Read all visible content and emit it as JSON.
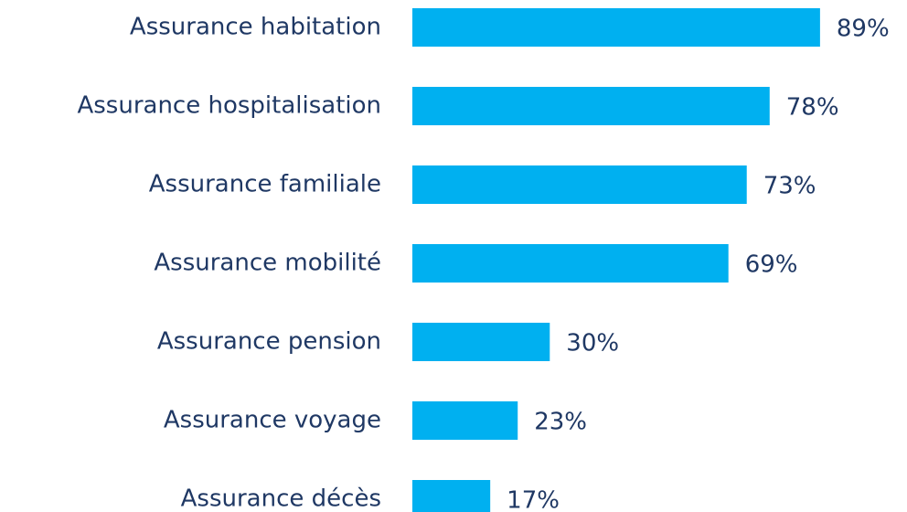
{
  "chart_data": {
    "type": "bar",
    "orientation": "horizontal",
    "categories": [
      "Assurance habitation",
      "Assurance hospitalisation",
      "Assurance familiale",
      "Assurance mobilité",
      "Assurance pension",
      "Assurance voyage",
      "Assurance décès"
    ],
    "values": [
      89,
      78,
      73,
      69,
      30,
      23,
      17
    ],
    "value_labels": [
      "89%",
      "78%",
      "73%",
      "69%",
      "30%",
      "23%",
      "17%"
    ],
    "color": "#00b0f0"
  }
}
